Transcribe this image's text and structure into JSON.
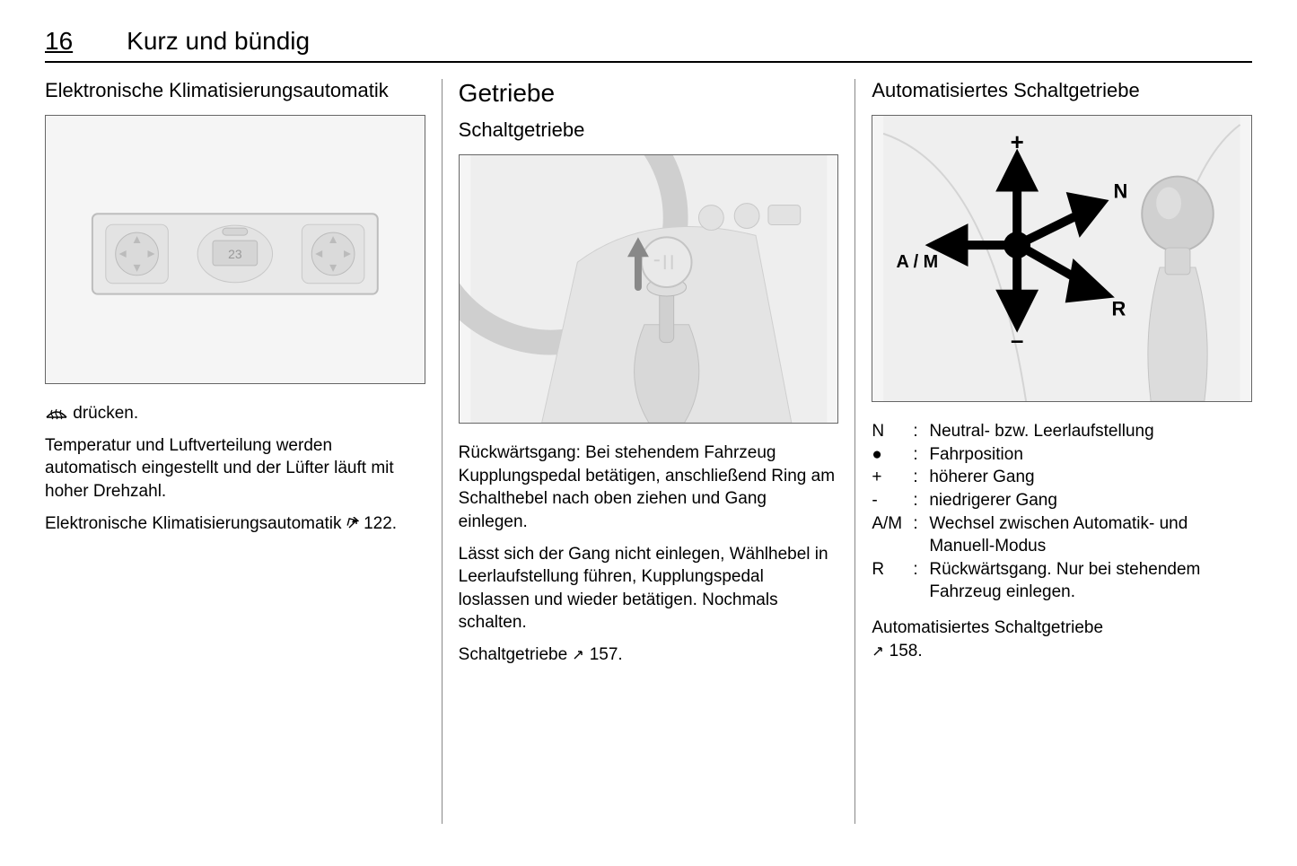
{
  "page": {
    "number": "16",
    "chapter": "Kurz und bündig"
  },
  "col1": {
    "heading": "Elektronische Klimatisierungsautomatik",
    "press_text": " drücken.",
    "para1": "Temperatur und Luftverteilung werden automatisch eingestellt und der Lüfter läuft mit hoher Drehzahl.",
    "para2_prefix": "Elektronische Klimatisierungsautomatik ",
    "para2_ref": "122."
  },
  "col2": {
    "section": "Getriebe",
    "sub": "Schaltgetriebe",
    "para1": "Rückwärtsgang: Bei stehendem Fahrzeug Kupplungspedal betätigen, anschließend Ring am Schalthebel nach oben ziehen und Gang einlegen.",
    "para2": "Lässt sich der Gang nicht einlegen, Wählhebel in Leerlaufstellung führen, Kupplungspedal loslassen und wieder betätigen. Nochmals schalten.",
    "para3_prefix": "Schaltgetriebe ",
    "para3_ref": "157."
  },
  "col3": {
    "sub": "Automatisiertes Schaltgetriebe",
    "defs": [
      {
        "sym": "N",
        "txt": "Neutral- bzw. Leerlaufstellung"
      },
      {
        "sym": "●",
        "txt": "Fahrposition"
      },
      {
        "sym": "+",
        "txt": "höherer Gang"
      },
      {
        "sym": "-",
        "txt": "niedrigerer Gang"
      },
      {
        "sym": "A/M",
        "txt": "Wechsel zwischen Automatik- und Manuell-Modus"
      },
      {
        "sym": "R",
        "txt": "Rückwärtsgang. Nur bei stehendem Fahrzeug einlegen."
      }
    ],
    "para_prefix": "Automatisiertes Schaltgetriebe ",
    "para_ref": "158."
  },
  "figures": {
    "climate_display": "23",
    "auto_labels": {
      "plus": "+",
      "minus": "–",
      "n": "N",
      "r": "R",
      "am": "A / M"
    }
  },
  "colors": {
    "fig_bg": "#f5f5f5",
    "fig_stroke": "#bdbdbd",
    "fig_fill": "#e9e9e9",
    "text": "#000000"
  }
}
